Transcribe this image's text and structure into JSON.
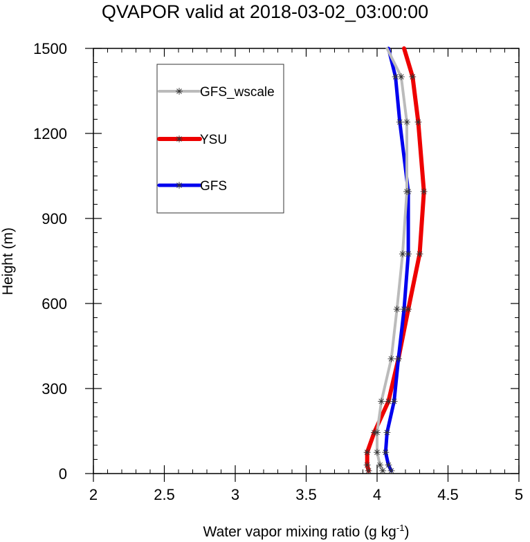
{
  "chart_data": {
    "type": "line",
    "title": "QVAPOR valid at 2018-03-02_03:00:00",
    "xlabel": "Water vapor mixing ratio (g kg",
    "xlabel_sup": "-1",
    "xlabel_tail": ")",
    "ylabel": "Height (m)",
    "xlim": [
      2,
      5
    ],
    "ylim": [
      0,
      1500
    ],
    "xticks": [
      2,
      2.5,
      3,
      3.5,
      4,
      4.5,
      5
    ],
    "xtick_labels": [
      "2",
      "2.5",
      "3",
      "3.5",
      "4",
      "4.5",
      "5"
    ],
    "yticks": [
      0,
      300,
      600,
      900,
      1200,
      1500
    ],
    "ytick_labels": [
      "0",
      "300",
      "600",
      "900",
      "1200",
      "1500"
    ],
    "legend_position": "top-left",
    "series": [
      {
        "name": "GFS_wscale",
        "color": "#bbbbbb",
        "x": [
          4.04,
          4.02,
          4.0,
          4.0,
          4.03,
          4.1,
          4.14,
          4.18,
          4.21,
          4.21,
          4.17,
          4.07
        ],
        "y": [
          10,
          30,
          75,
          145,
          255,
          405,
          580,
          775,
          995,
          1240,
          1400,
          1500
        ]
      },
      {
        "name": "YSU",
        "color": "#ee0000",
        "x": [
          3.94,
          3.93,
          3.93,
          3.98,
          4.08,
          4.15,
          4.22,
          4.3,
          4.33,
          4.29,
          4.25,
          4.19
        ],
        "y": [
          10,
          30,
          75,
          145,
          255,
          405,
          580,
          775,
          995,
          1240,
          1400,
          1500
        ]
      },
      {
        "name": "GFS",
        "color": "#0000ee",
        "x": [
          4.1,
          4.08,
          4.06,
          4.07,
          4.12,
          4.15,
          4.19,
          4.22,
          4.22,
          4.16,
          4.13,
          4.08
        ],
        "y": [
          10,
          30,
          75,
          145,
          255,
          405,
          580,
          775,
          995,
          1240,
          1400,
          1500
        ]
      }
    ]
  }
}
